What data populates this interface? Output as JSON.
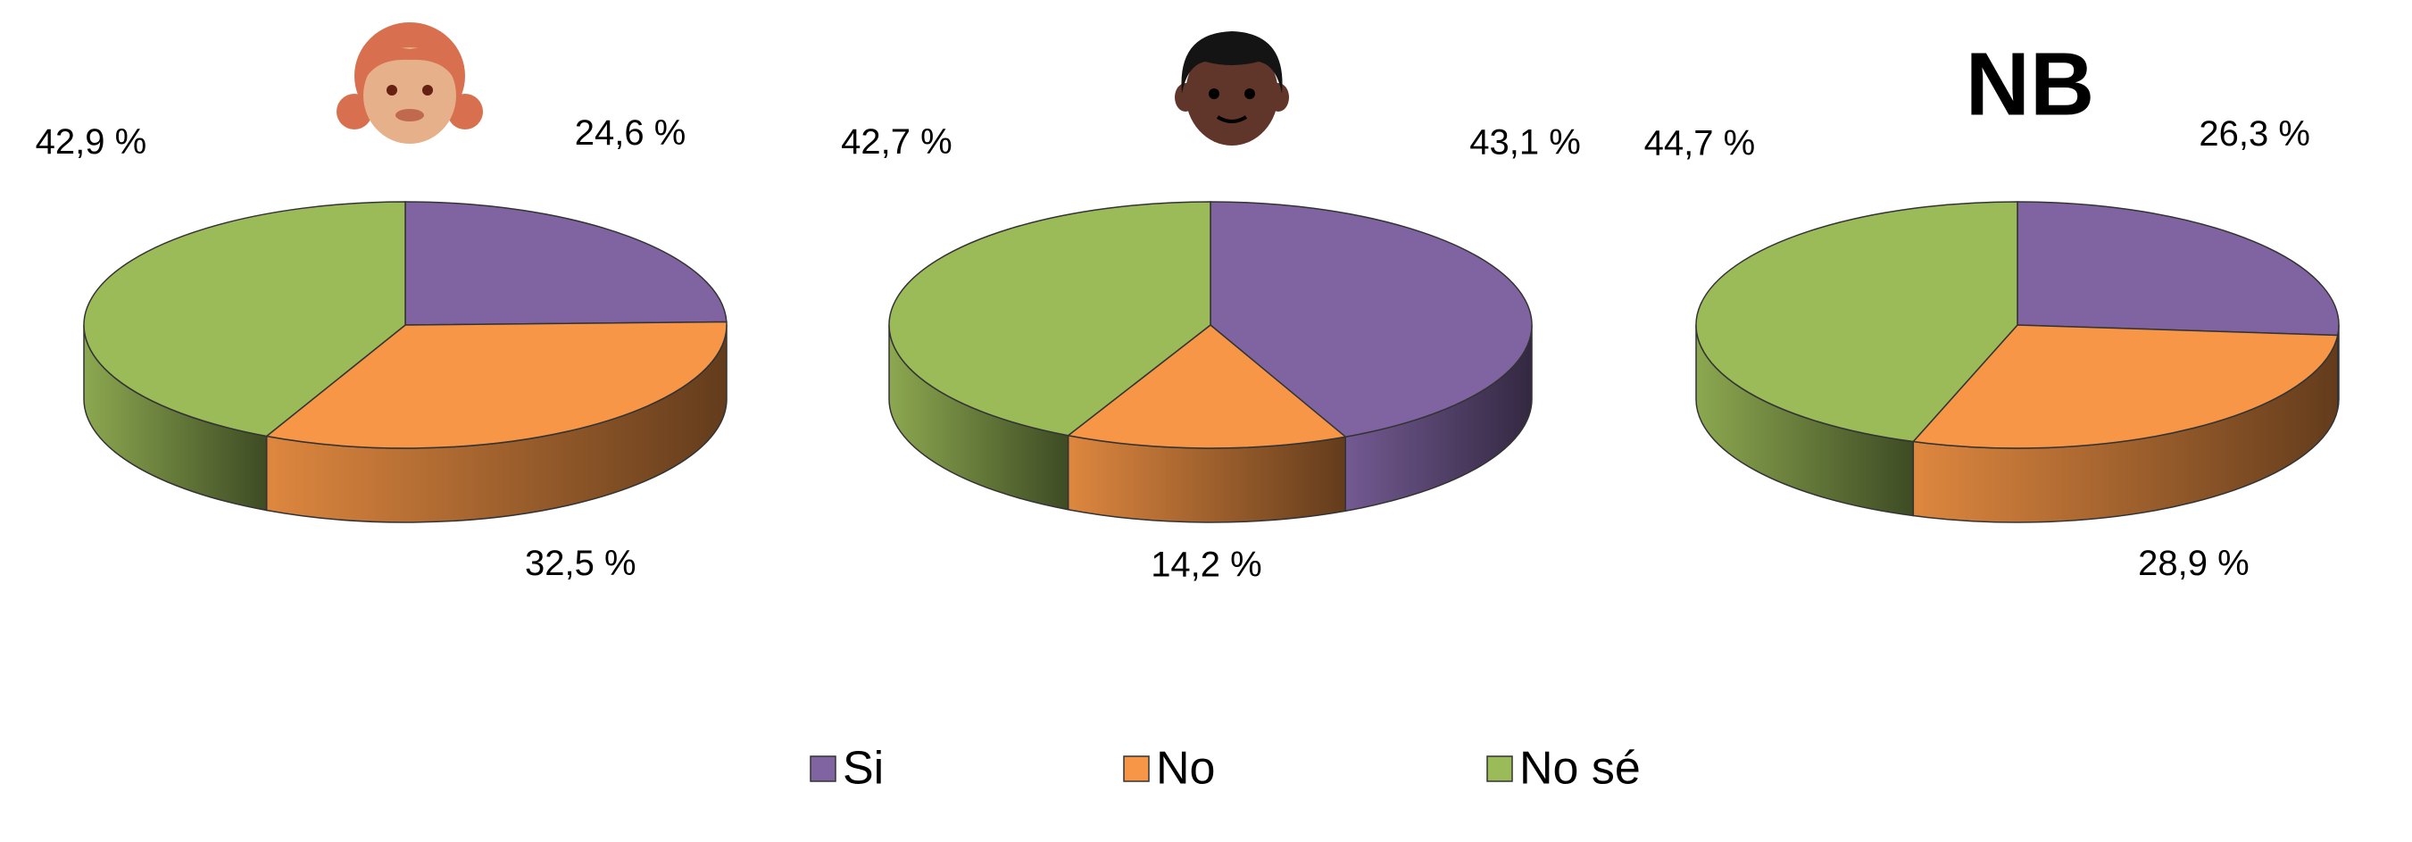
{
  "chart_data": [
    {
      "type": "pie",
      "categories": [
        "Si",
        "No",
        "No sé"
      ],
      "colors": [
        "#8064a2",
        "#f79646",
        "#9bbb59"
      ],
      "legend": "bottom",
      "values": [
        24.6,
        32.5,
        42.9
      ],
      "value_labels": [
        "24,6 %",
        "32,5 %",
        "42,9 %"
      ]
    },
    {
      "type": "pie",
      "colors": [
        "#8064a2",
        "#f79646",
        "#9bbb59"
      ],
      "values": [
        43.1,
        14.2,
        42.7
      ],
      "value_labels": [
        "43,1 %",
        "14,2 %",
        "42,7 %"
      ]
    },
    {
      "type": "pie",
      "title": "NB",
      "colors": [
        "#8064a2",
        "#f79646",
        "#9bbb59"
      ],
      "values": [
        26.3,
        28.9,
        44.7
      ],
      "value_labels": [
        "26,3 %",
        "28,9 %",
        "44,7 %"
      ]
    }
  ]
}
